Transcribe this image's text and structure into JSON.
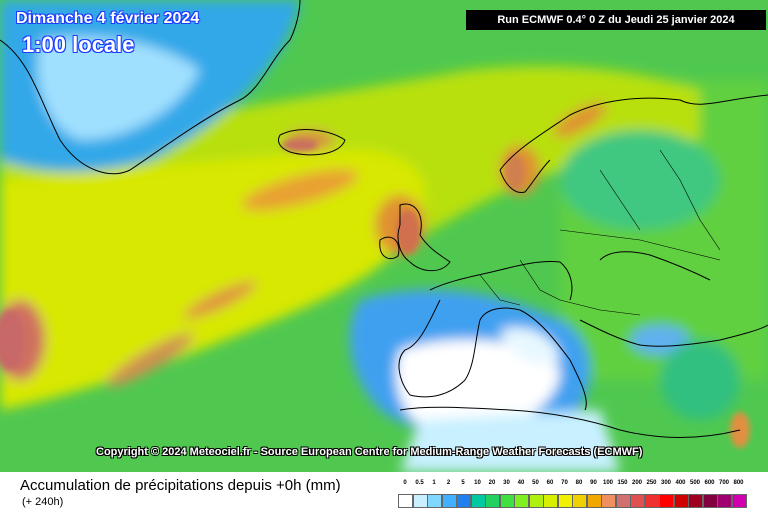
{
  "header": {
    "date_line": "Dimanche 4 février 2024",
    "time_line": "1:00 locale",
    "run_info": "Run ECMWF 0.4° 0 Z du Jeudi 25 janvier 2024"
  },
  "copyright": "Copyright © 2024 Meteociel.fr - Source European Centre for Medium-Range Weather Forecasts (ECMWF)",
  "legend": {
    "title": "Accumulation de précipitations depuis +0h (mm)",
    "subtitle": "(+ 240h)",
    "scale_labels": [
      "0",
      "0.5",
      "1",
      "2",
      "5",
      "10",
      "20",
      "30",
      "40",
      "50",
      "60",
      "70",
      "80",
      "90",
      "100",
      "150",
      "200",
      "250",
      "300",
      "400",
      "500",
      "600",
      "700",
      "800"
    ],
    "scale_colors": [
      "#ffffff",
      "#c8f0ff",
      "#80d8ff",
      "#40b0ff",
      "#2080f0",
      "#00c8a0",
      "#20d060",
      "#40e040",
      "#80ee20",
      "#b0f010",
      "#d8f000",
      "#f0f000",
      "#f0d000",
      "#f0a800",
      "#f09060",
      "#d07070",
      "#e05050",
      "#f03030",
      "#ff0000",
      "#d00000",
      "#a00020",
      "#800040",
      "#a00070",
      "#d000b0"
    ]
  }
}
